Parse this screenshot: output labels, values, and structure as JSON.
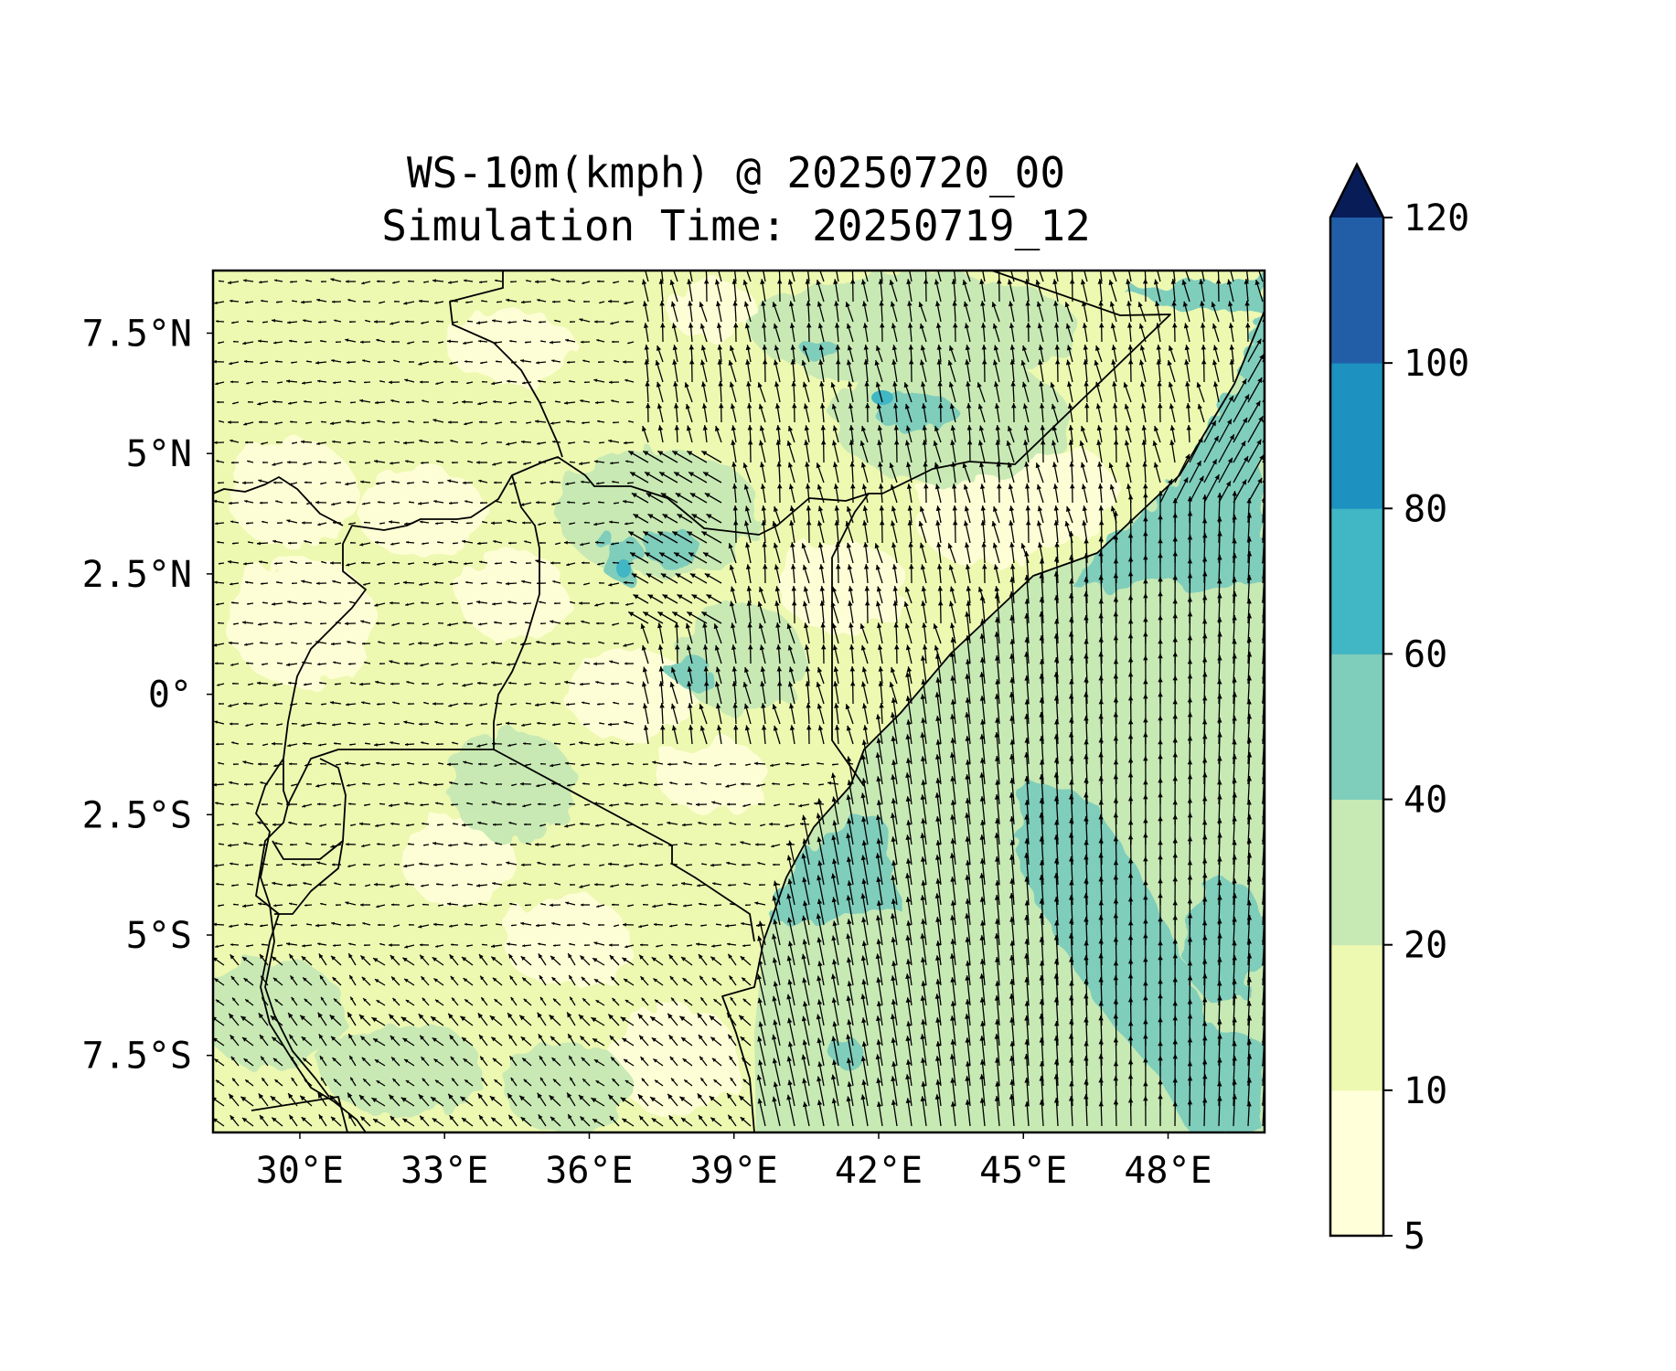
{
  "title": "WS-10m(kmph) @ 20250720_00",
  "subtitle": "Simulation Time: 20250719_12",
  "map": {
    "extent": {
      "lon_min": 28.2,
      "lon_max": 50.0,
      "lat_min": -9.1,
      "lat_max": 8.8
    },
    "lon_ticks": [
      30,
      33,
      36,
      39,
      42,
      45,
      48
    ],
    "lon_tick_labels": [
      "30°E",
      "33°E",
      "36°E",
      "39°E",
      "42°E",
      "45°E",
      "48°E"
    ],
    "lat_ticks": [
      7.5,
      5,
      2.5,
      0,
      -2.5,
      -5,
      -7.5
    ],
    "lat_tick_labels": [
      "7.5°N",
      "5°N",
      "2.5°N",
      "0°",
      "2.5°S",
      "5°S",
      "7.5°S"
    ]
  },
  "colorbar": {
    "levels": [
      5,
      10,
      20,
      40,
      60,
      80,
      100,
      120
    ],
    "tick_labels": [
      "5",
      "10",
      "20",
      "40",
      "60",
      "80",
      "100",
      "120"
    ],
    "colors": [
      "#ffffd9",
      "#edf8b1",
      "#c7e9b4",
      "#7fcdbb",
      "#41b6c4",
      "#1d91c0",
      "#225ea8",
      "#253494"
    ],
    "extend_color": "#081d58",
    "extend": "max"
  },
  "colors": {
    "land_base": "#edf8b1",
    "land_light": "#ffffd9",
    "land_green": "#c7e9b4",
    "ocean_base": "#c7e9b4",
    "strong_wind": "#7fcdbb",
    "jet": "#41b6c4",
    "arrow": "#000000"
  }
}
